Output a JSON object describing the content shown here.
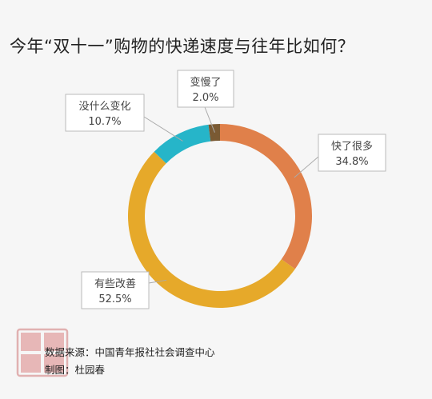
{
  "chart_data": {
    "type": "pie",
    "title": "今年“双十一”购物的快递速度与往年比如何？",
    "slices": [
      {
        "label": "快了很多",
        "value": 34.8,
        "value_label": "34.8%",
        "color": "#e0804a"
      },
      {
        "label": "有些改善",
        "value": 52.5,
        "value_label": "52.5%",
        "color": "#e6a92a"
      },
      {
        "label": "没什么变化",
        "value": 10.7,
        "value_label": "10.7%",
        "color": "#26b5c9"
      },
      {
        "label": "变慢了",
        "value": 2.0,
        "value_label": "2.0%",
        "color": "#7a5a33"
      }
    ],
    "donut": true,
    "legend": "none"
  },
  "footer": {
    "source": "数据来源：中国青年报社社会调查中心",
    "maker": "制图：杜园春"
  }
}
